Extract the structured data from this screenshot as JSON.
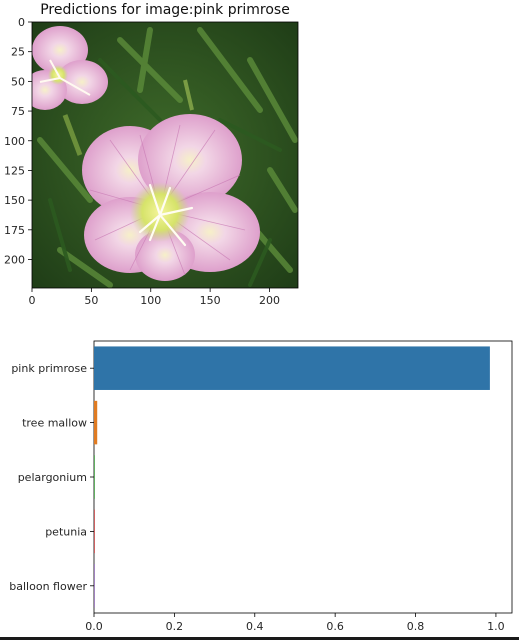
{
  "image_panel": {
    "title": "Predictions for image:pink primrose",
    "xticks": [
      0,
      50,
      100,
      150,
      200
    ],
    "yticks": [
      0,
      25,
      50,
      75,
      100,
      125,
      150,
      175,
      200
    ],
    "xlim": [
      0,
      224
    ],
    "ylim": [
      224,
      0
    ]
  },
  "chart_data": {
    "type": "bar",
    "orientation": "horizontal",
    "categories": [
      "pink primrose",
      "tree mallow",
      "pelargonium",
      "petunia",
      "balloon flower"
    ],
    "values": [
      0.985,
      0.008,
      0.002,
      0.002,
      0.001
    ],
    "colors": [
      "#2f74a8",
      "#e07b22",
      "#3a9c3a",
      "#c23b3b",
      "#8a63b0"
    ],
    "xticks": [
      "0.0",
      "0.2",
      "0.4",
      "0.6",
      "0.8",
      "1.0"
    ],
    "xlim": [
      0,
      1.04
    ],
    "title": "",
    "xlabel": "",
    "ylabel": ""
  }
}
